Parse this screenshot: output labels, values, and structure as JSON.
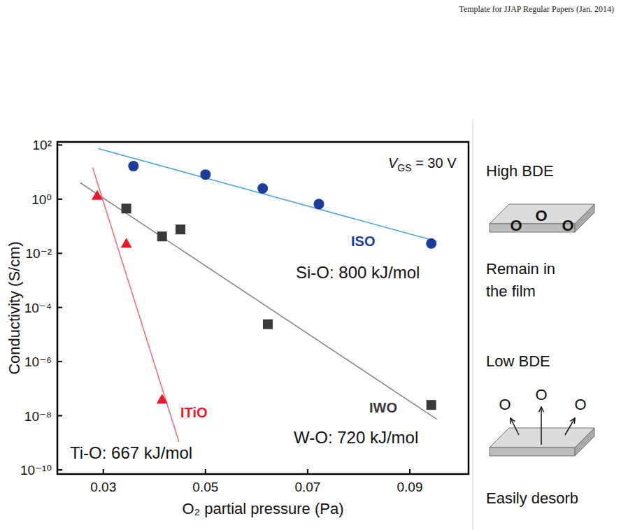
{
  "header": "Template for JJAP Regular Papers (Jan. 2014)",
  "chart_data": {
    "type": "scatter",
    "x_label": "O₂ partial pressure (Pa)",
    "y_label": "Conductivity (S/cm)",
    "log": "y",
    "grid": false,
    "xlim": [
      0.021,
      0.1015
    ],
    "xticks": [
      0.03,
      0.05,
      0.07,
      0.09
    ],
    "ylim": [
      7e-11,
      130
    ],
    "yticks": [
      {
        "value": 100,
        "label": "10²"
      },
      {
        "value": 1,
        "label": "10⁰"
      },
      {
        "value": 0.01,
        "label": "10⁻²"
      },
      {
        "value": 0.0001,
        "label": "10⁻⁴"
      },
      {
        "value": 1e-06,
        "label": "10⁻⁶"
      },
      {
        "value": 1e-08,
        "label": "10⁻⁸"
      },
      {
        "value": 1e-10,
        "label": "10⁻¹⁰"
      }
    ],
    "annotation": {
      "main": "V",
      "sub": "GS",
      "rest": " = 30 V"
    },
    "series": [
      {
        "name": "ISO",
        "color": "#1c3c9c",
        "marker": "circle",
        "bond": "Si-O: 800 kJ/mol",
        "x": [
          0.0359,
          0.05,
          0.0612,
          0.0722,
          0.0942
        ],
        "values": [
          16.6,
          8.1,
          2.5,
          0.66,
          0.023
        ],
        "fit": {
          "color": "#4ea6dc",
          "x": [
            0.029,
            0.0953
          ],
          "values": [
            74,
            0.0275
          ]
        }
      },
      {
        "name": "IWO",
        "color": "#3a3a3a",
        "marker": "square",
        "bond": "W-O: 720 kJ/mol",
        "x": [
          0.0345,
          0.0415,
          0.0451,
          0.0622,
          0.0942
        ],
        "values": [
          0.45,
          0.042,
          0.076,
          2.4e-05,
          2.5e-08
        ],
        "fit": {
          "color": "#8a8a8a",
          "x": [
            0.0255,
            0.0953
          ],
          "values": [
            4,
            7.4e-09
          ]
        }
      },
      {
        "name": "ITiO",
        "color": "#e8192c",
        "marker": "triangle",
        "bond": "Ti-O: 667 kJ/mol",
        "x": [
          0.0288,
          0.0345,
          0.0415
        ],
        "values": [
          1.35,
          0.023,
          4e-08
        ],
        "fit": {
          "color": "#ec6f80",
          "x": [
            0.0279,
            0.0448
          ],
          "values": [
            14.8,
            1.1e-09
          ]
        }
      }
    ]
  },
  "diagram": {
    "high": {
      "title": "High BDE",
      "atoms": [
        "O",
        "O",
        "O"
      ],
      "caption": [
        "Remain in",
        "the film"
      ]
    },
    "low": {
      "title": "Low BDE",
      "atoms": [
        "O",
        "O",
        "O"
      ],
      "caption": [
        "Easily desorb"
      ]
    }
  }
}
